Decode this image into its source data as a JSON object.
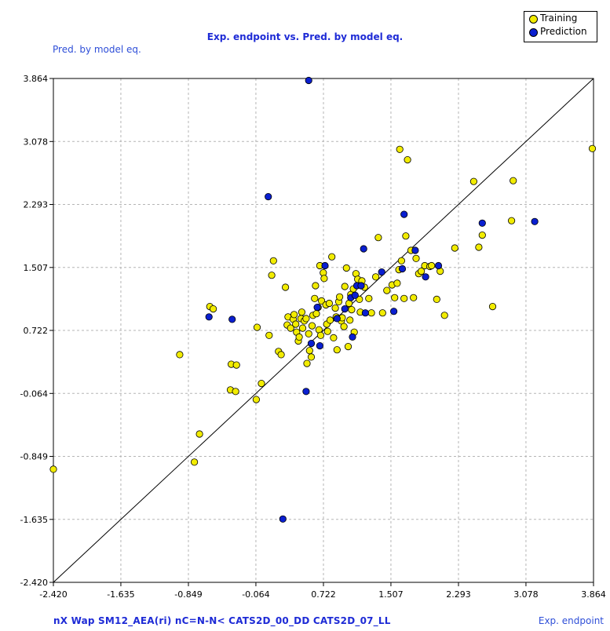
{
  "chart_data": {
    "type": "scatter",
    "title": "Exp. endpoint vs. Pred. by model eq.",
    "xlabel": "Exp. endpoint",
    "ylabel": "Pred. by model eq.",
    "variables_label": "nX  Wap  SM12_AEA(ri)  nC=N-N<  CATS2D_00_DD  CATS2D_07_LL",
    "xlim": [
      -2.42,
      3.864
    ],
    "ylim": [
      -2.42,
      3.864
    ],
    "xticks": [
      "-2.420",
      "-1.635",
      "-0.849",
      "-0.064",
      "0.722",
      "1.507",
      "2.293",
      "3.078",
      "3.864"
    ],
    "yticks": [
      "-2.420",
      "-1.635",
      "-0.849",
      "-0.064",
      "0.722",
      "1.507",
      "2.293",
      "3.078",
      "3.864"
    ],
    "grid": true,
    "legend_position": "top-right",
    "diagonal": true,
    "series": [
      {
        "name": "Training",
        "color": "#f2ec00",
        "points": [
          [
            -2.42,
            -1.01
          ],
          [
            -0.78,
            -0.92
          ],
          [
            -0.72,
            -0.57
          ],
          [
            -0.95,
            0.42
          ],
          [
            -0.6,
            1.02
          ],
          [
            -0.56,
            0.99
          ],
          [
            -0.35,
            0.3
          ],
          [
            -0.29,
            0.29
          ],
          [
            -0.36,
            -0.02
          ],
          [
            -0.3,
            -0.04
          ],
          [
            -0.05,
            0.76
          ],
          [
            -0.06,
            -0.14
          ],
          [
            0.0,
            0.06
          ],
          [
            0.09,
            0.66
          ],
          [
            0.12,
            1.41
          ],
          [
            0.14,
            1.59
          ],
          [
            0.2,
            0.46
          ],
          [
            0.23,
            0.42
          ],
          [
            0.28,
            1.26
          ],
          [
            0.3,
            0.79
          ],
          [
            0.31,
            0.89
          ],
          [
            0.34,
            0.75
          ],
          [
            0.37,
            0.86
          ],
          [
            0.38,
            0.92
          ],
          [
            0.4,
            0.8
          ],
          [
            0.41,
            0.7
          ],
          [
            0.43,
            0.59
          ],
          [
            0.44,
            0.64
          ],
          [
            0.46,
            0.87
          ],
          [
            0.47,
            0.95
          ],
          [
            0.48,
            0.75
          ],
          [
            0.5,
            0.84
          ],
          [
            0.52,
            0.87
          ],
          [
            0.53,
            0.31
          ],
          [
            0.55,
            0.68
          ],
          [
            0.56,
            0.47
          ],
          [
            0.58,
            0.39
          ],
          [
            0.59,
            0.78
          ],
          [
            0.6,
            0.91
          ],
          [
            0.62,
            1.12
          ],
          [
            0.63,
            1.28
          ],
          [
            0.64,
            0.93
          ],
          [
            0.66,
            1.01
          ],
          [
            0.67,
            0.73
          ],
          [
            0.68,
            1.53
          ],
          [
            0.69,
            0.66
          ],
          [
            0.7,
            1.09
          ],
          [
            0.72,
            1.44
          ],
          [
            0.73,
            1.37
          ],
          [
            0.75,
            1.04
          ],
          [
            0.76,
            0.8
          ],
          [
            0.77,
            0.71
          ],
          [
            0.79,
            1.06
          ],
          [
            0.8,
            0.85
          ],
          [
            0.82,
            1.64
          ],
          [
            0.84,
            0.63
          ],
          [
            0.86,
            1.0
          ],
          [
            0.87,
            0.89
          ],
          [
            0.88,
            0.48
          ],
          [
            0.9,
            1.08
          ],
          [
            0.91,
            1.14
          ],
          [
            0.93,
            0.84
          ],
          [
            0.94,
            0.88
          ],
          [
            0.96,
            0.77
          ],
          [
            0.97,
            1.27
          ],
          [
            0.99,
            1.5
          ],
          [
            1.01,
            0.52
          ],
          [
            1.02,
            1.06
          ],
          [
            1.03,
            0.85
          ],
          [
            1.04,
            1.17
          ],
          [
            1.05,
            0.98
          ],
          [
            1.07,
            1.24
          ],
          [
            1.08,
            0.7
          ],
          [
            1.1,
            1.43
          ],
          [
            1.12,
            1.36
          ],
          [
            1.14,
            1.11
          ],
          [
            1.15,
            0.95
          ],
          [
            1.17,
            1.34
          ],
          [
            1.2,
            1.26
          ],
          [
            1.25,
            1.12
          ],
          [
            1.28,
            0.94
          ],
          [
            1.33,
            1.39
          ],
          [
            1.36,
            1.88
          ],
          [
            1.41,
            0.94
          ],
          [
            1.46,
            1.22
          ],
          [
            1.52,
            1.29
          ],
          [
            1.55,
            1.13
          ],
          [
            1.58,
            1.31
          ],
          [
            1.6,
            1.48
          ],
          [
            1.61,
            2.98
          ],
          [
            1.63,
            1.59
          ],
          [
            1.66,
            1.12
          ],
          [
            1.68,
            1.9
          ],
          [
            1.7,
            2.85
          ],
          [
            1.74,
            1.72
          ],
          [
            1.77,
            1.13
          ],
          [
            1.8,
            1.62
          ],
          [
            1.83,
            1.43
          ],
          [
            1.86,
            1.46
          ],
          [
            1.9,
            1.53
          ],
          [
            1.96,
            1.52
          ],
          [
            1.98,
            1.53
          ],
          [
            2.04,
            1.11
          ],
          [
            2.08,
            1.46
          ],
          [
            2.13,
            0.91
          ],
          [
            2.25,
            1.75
          ],
          [
            2.47,
            2.58
          ],
          [
            2.53,
            1.76
          ],
          [
            2.57,
            1.91
          ],
          [
            2.69,
            1.02
          ],
          [
            2.91,
            2.09
          ],
          [
            2.93,
            2.59
          ],
          [
            3.85,
            2.99
          ]
        ]
      },
      {
        "name": "Prediction",
        "color": "#0a1fd0",
        "points": [
          [
            -0.61,
            0.89
          ],
          [
            -0.34,
            0.86
          ],
          [
            0.08,
            2.39
          ],
          [
            0.25,
            -1.63
          ],
          [
            0.52,
            -0.04
          ],
          [
            0.55,
            3.84
          ],
          [
            0.58,
            0.56
          ],
          [
            0.65,
            1.01
          ],
          [
            0.68,
            0.53
          ],
          [
            0.74,
            1.53
          ],
          [
            0.88,
            0.87
          ],
          [
            0.97,
            0.99
          ],
          [
            1.04,
            1.13
          ],
          [
            1.06,
            0.64
          ],
          [
            1.09,
            1.16
          ],
          [
            1.11,
            1.28
          ],
          [
            1.16,
            1.28
          ],
          [
            1.19,
            1.74
          ],
          [
            1.21,
            0.94
          ],
          [
            1.4,
            1.45
          ],
          [
            1.54,
            0.96
          ],
          [
            1.64,
            1.49
          ],
          [
            1.66,
            2.17
          ],
          [
            1.79,
            1.72
          ],
          [
            1.91,
            1.39
          ],
          [
            2.06,
            1.53
          ],
          [
            2.57,
            2.06
          ],
          [
            3.18,
            2.08
          ]
        ]
      }
    ]
  }
}
